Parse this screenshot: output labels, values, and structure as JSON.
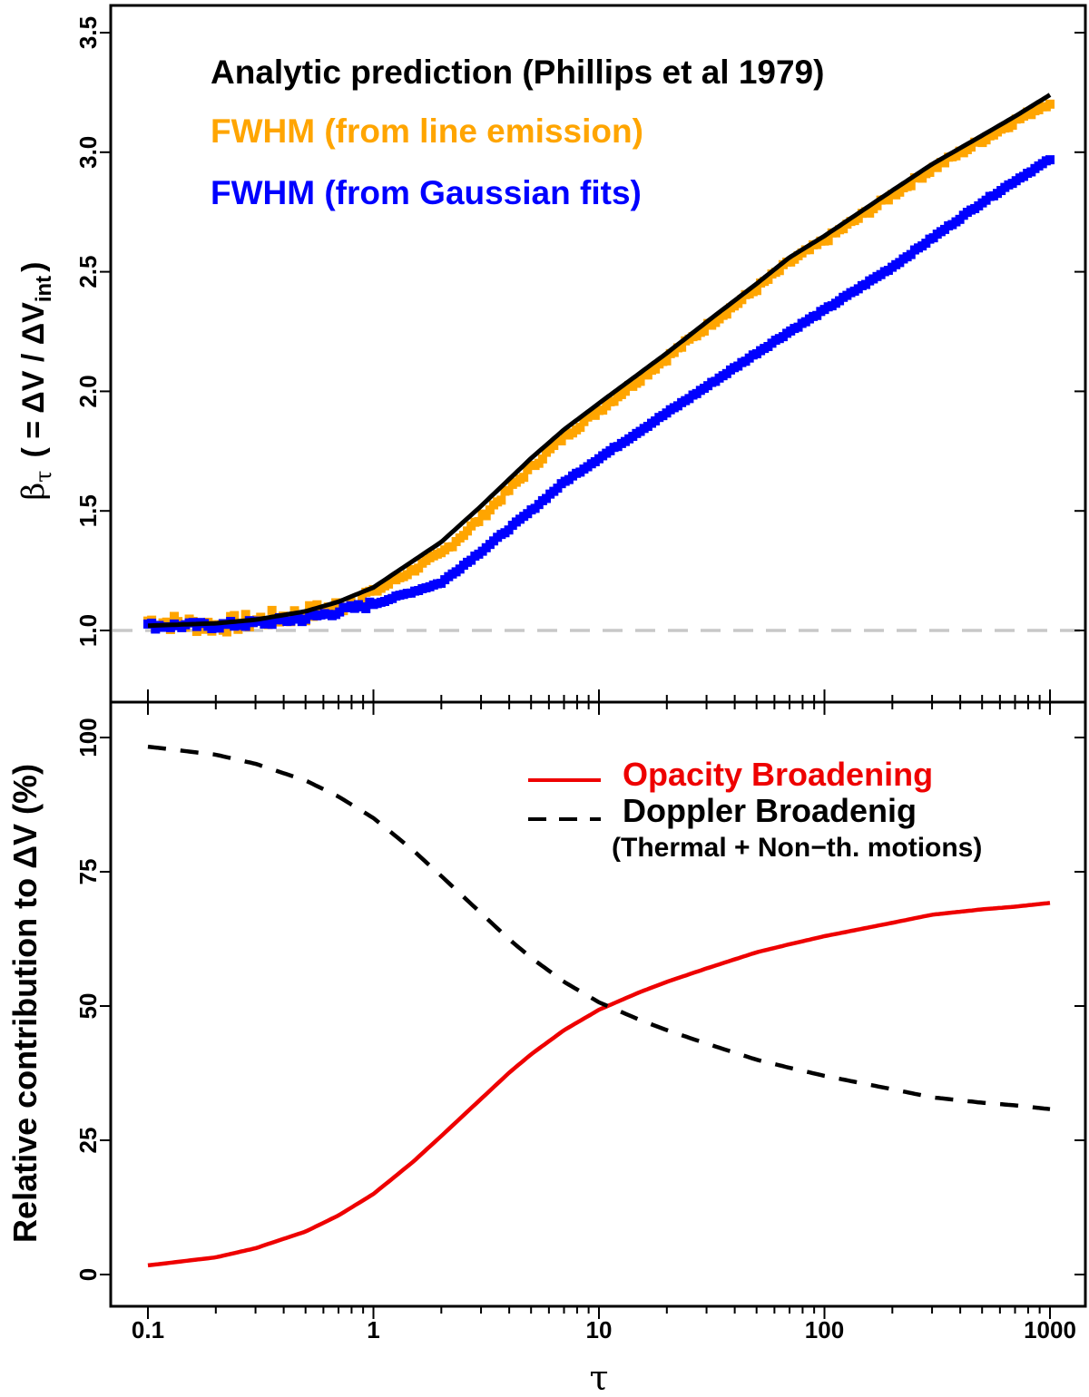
{
  "chart_data": [
    {
      "type": "line",
      "xscale": "log",
      "xlim": [
        0.1,
        1000
      ],
      "ylim": [
        0.8,
        3.55
      ],
      "ylabel": {
        "symbol": "β",
        "symbol_sub": "τ",
        "open": "( = ΔV / ΔV",
        "sub": "int",
        "close": ")"
      },
      "yticks": [
        "1.0",
        "1.5",
        "2.0",
        "2.5",
        "3.0",
        "3.5"
      ],
      "ytick_values": [
        1.0,
        1.5,
        2.0,
        2.5,
        3.0,
        3.5
      ],
      "reference_line": {
        "y": 1.0,
        "style": "dashed",
        "color": "#c8c8c8"
      },
      "legend": [
        {
          "label": "Analytic prediction (Phillips et al 1979)",
          "color": "#000000"
        },
        {
          "label": "FWHM (from line emission)",
          "color": "#ffa500"
        },
        {
          "label": "FWHM (from Gaussian fits)",
          "color": "#0000ff"
        }
      ],
      "series": [
        {
          "name": "Analytic prediction (Phillips et al 1979)",
          "style": "line",
          "color": "#000000",
          "x": [
            0.1,
            0.2,
            0.3,
            0.5,
            0.7,
            1,
            2,
            3,
            5,
            7,
            10,
            20,
            30,
            50,
            70,
            100,
            200,
            300,
            500,
            700,
            1000
          ],
          "y": [
            1.02,
            1.03,
            1.045,
            1.08,
            1.12,
            1.18,
            1.37,
            1.52,
            1.72,
            1.84,
            1.95,
            2.16,
            2.29,
            2.45,
            2.56,
            2.65,
            2.84,
            2.95,
            3.07,
            3.15,
            3.24
          ]
        },
        {
          "name": "FWHM (from line emission)",
          "style": "markers",
          "color": "#ffa500",
          "x": [
            0.1,
            0.2,
            0.3,
            0.5,
            0.7,
            1,
            2,
            3,
            5,
            7,
            10,
            20,
            30,
            50,
            70,
            100,
            200,
            300,
            500,
            700,
            1000
          ],
          "y": [
            1.04,
            1.02,
            1.04,
            1.07,
            1.1,
            1.16,
            1.32,
            1.47,
            1.68,
            1.81,
            1.92,
            2.14,
            2.27,
            2.43,
            2.54,
            2.63,
            2.82,
            2.93,
            3.05,
            3.13,
            3.21
          ]
        },
        {
          "name": "FWHM (from Gaussian fits)",
          "style": "markers",
          "color": "#0000ff",
          "x": [
            0.1,
            0.2,
            0.3,
            0.5,
            0.7,
            1,
            2,
            3,
            5,
            7,
            10,
            20,
            30,
            50,
            70,
            100,
            200,
            300,
            500,
            700,
            1000
          ],
          "y": [
            1.02,
            1.02,
            1.03,
            1.05,
            1.08,
            1.11,
            1.2,
            1.33,
            1.5,
            1.62,
            1.72,
            1.91,
            2.02,
            2.16,
            2.25,
            2.34,
            2.52,
            2.64,
            2.79,
            2.88,
            2.97
          ]
        }
      ]
    },
    {
      "type": "line",
      "xscale": "log",
      "xlim": [
        0.1,
        1000
      ],
      "ylim": [
        -5,
        103
      ],
      "ylabel": {
        "text": "Relative contribution to ΔV (%)"
      },
      "yticks": [
        "0",
        "25",
        "50",
        "75",
        "100"
      ],
      "ytick_values": [
        0,
        25,
        50,
        75,
        100
      ],
      "xlabel": "τ",
      "xticks": [
        "0.1",
        "1",
        "10",
        "100",
        "1000"
      ],
      "xtick_values": [
        0.1,
        1,
        10,
        100,
        1000
      ],
      "legend": [
        {
          "label": "Opacity Broadening",
          "color": "#ee0000",
          "style": "solid"
        },
        {
          "label": "Doppler Broadenig",
          "sublabel": "(Thermal + Non−th. motions)",
          "color": "#000000",
          "style": "dashed"
        }
      ],
      "series": [
        {
          "name": "Opacity Broadening",
          "style": "solid",
          "color": "#ee0000",
          "x": [
            0.1,
            0.2,
            0.3,
            0.5,
            0.7,
            1,
            1.5,
            2,
            3,
            4,
            5,
            7,
            10,
            15,
            20,
            30,
            50,
            70,
            100,
            200,
            300,
            500,
            700,
            1000
          ],
          "y": [
            1.7,
            3.2,
            4.9,
            8.0,
            11.0,
            15.0,
            21.0,
            25.8,
            32.7,
            37.6,
            41.0,
            45.5,
            49.3,
            52.5,
            54.5,
            57.0,
            60.0,
            61.5,
            63.0,
            65.5,
            67.0,
            68.0,
            68.5,
            69.2
          ]
        },
        {
          "name": "Doppler Broadenig",
          "style": "dashed",
          "color": "#000000",
          "x": [
            0.1,
            0.2,
            0.3,
            0.5,
            0.7,
            1,
            1.5,
            2,
            3,
            4,
            5,
            7,
            10,
            15,
            20,
            30,
            50,
            70,
            100,
            200,
            300,
            500,
            700,
            1000
          ],
          "y": [
            98.3,
            96.8,
            95.1,
            92.0,
            89.0,
            85.0,
            79.0,
            74.2,
            67.3,
            62.4,
            59.0,
            54.5,
            50.7,
            47.5,
            45.5,
            43.0,
            40.0,
            38.5,
            37.0,
            34.5,
            33.0,
            32.0,
            31.5,
            30.8
          ]
        }
      ]
    }
  ]
}
